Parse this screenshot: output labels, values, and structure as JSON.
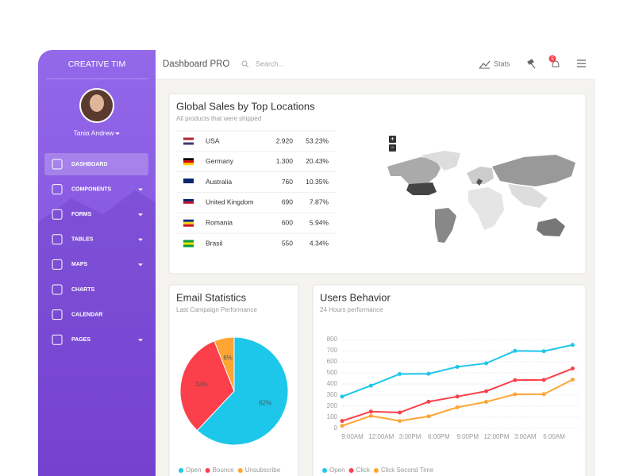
{
  "sidebar": {
    "brand": "CREATIVE TIM",
    "user": "Tania Andrew",
    "menu": [
      "DASHBOARD",
      "COMPONENTS",
      "FORMS",
      "TABLES",
      "MAPS",
      "CHARTS",
      "CALENDAR",
      "PAGES"
    ]
  },
  "header": {
    "title": "Dashboard PRO",
    "search": "Search...",
    "stats": "Stats",
    "badge": "5"
  },
  "sales": {
    "title": "Global Sales by Top Locations",
    "subtitle": "All products that were shipped",
    "rows": [
      [
        "USA",
        "2.920",
        "53.23%"
      ],
      [
        "Germany",
        "1.300",
        "20.43%"
      ],
      [
        "Australia",
        "760",
        "10.35%"
      ],
      [
        "United Kingdom",
        "690",
        "7.87%"
      ],
      [
        "Romania",
        "600",
        "5.94%"
      ],
      [
        "Brasil",
        "550",
        "4.34%"
      ]
    ],
    "zoom_in": "+",
    "zoom_out": "−"
  },
  "chart_data": [
    {
      "type": "pie",
      "title": "Email Statistics",
      "subtitle": "Last Campaign Performance",
      "categories": [
        "Open",
        "Bounce",
        "Unsubscribe"
      ],
      "values": [
        62,
        32,
        6
      ],
      "value_labels": [
        "62%",
        "32%",
        "6%"
      ],
      "colors": [
        "#1dc7ea",
        "#fb404b",
        "#ffa534"
      ]
    },
    {
      "type": "line",
      "title": "Users Behavior",
      "subtitle": "24 Hours performance",
      "categories": [
        "9:00AM",
        "12:00AM",
        "3:00PM",
        "6:00PM",
        "9:00PM",
        "12:00PM",
        "3:00AM",
        "6:00AM",
        null
      ],
      "series": [
        {
          "name": "Open",
          "color": "#1dc7ea",
          "values": [
            287,
            385,
            490,
            492,
            554,
            586,
            698,
            695,
            752
          ]
        },
        {
          "name": "Click",
          "color": "#fb404b",
          "values": [
            67,
            152,
            143,
            240,
            287,
            335,
            435,
            437,
            539
          ]
        },
        {
          "name": "Click Second Time",
          "color": "#ffa534",
          "values": [
            23,
            113,
            67,
            108,
            190,
            239,
            307,
            308,
            439
          ]
        }
      ],
      "ylim": [
        0,
        800
      ],
      "yticks": [
        0,
        100,
        200,
        300,
        400,
        500,
        600,
        700,
        800
      ],
      "grid": true
    }
  ]
}
